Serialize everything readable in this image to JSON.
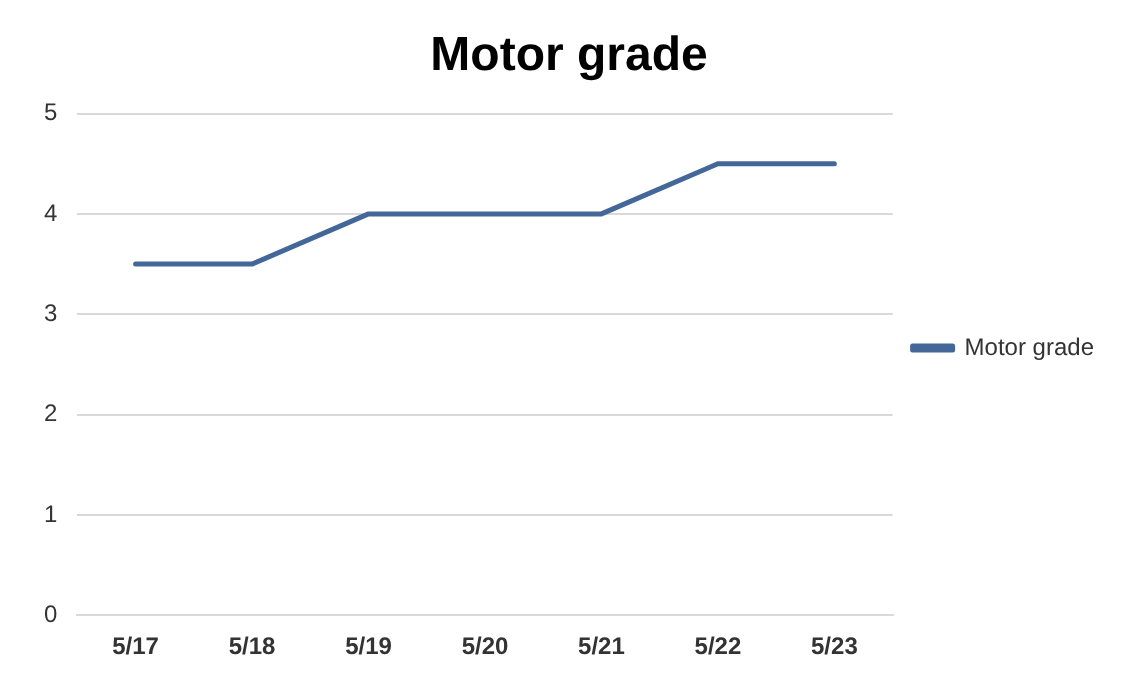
{
  "chart_data": {
    "type": "line",
    "title": "Motor grade",
    "categories": [
      "5/17",
      "5/18",
      "5/19",
      "5/20",
      "5/21",
      "5/22",
      "5/23"
    ],
    "series": [
      {
        "name": "Motor grade",
        "color": "#44679a",
        "values": [
          3.5,
          3.5,
          4,
          4,
          4,
          4.5,
          4.5
        ]
      }
    ],
    "ylim": [
      0,
      5
    ],
    "yticks": [
      0,
      1,
      2,
      3,
      4,
      5
    ],
    "grid": "y",
    "legend": "right",
    "marker": "none",
    "line_style": "solid"
  }
}
